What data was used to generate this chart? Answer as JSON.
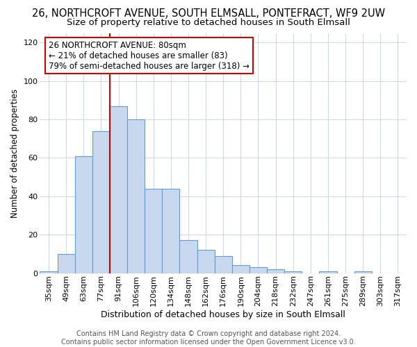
{
  "title": "26, NORTHCROFT AVENUE, SOUTH ELMSALL, PONTEFRACT, WF9 2UW",
  "subtitle": "Size of property relative to detached houses in South Elmsall",
  "xlabel": "Distribution of detached houses by size in South Elmsall",
  "ylabel": "Number of detached properties",
  "bar_color": "#c8d8ee",
  "bar_edge_color": "#6699cc",
  "background_color": "#ffffff",
  "grid_color": "#d0d8e8",
  "categories": [
    "35sqm",
    "49sqm",
    "63sqm",
    "77sqm",
    "91sqm",
    "106sqm",
    "120sqm",
    "134sqm",
    "148sqm",
    "162sqm",
    "176sqm",
    "190sqm",
    "204sqm",
    "218sqm",
    "232sqm",
    "247sqm",
    "261sqm",
    "275sqm",
    "289sqm",
    "303sqm",
    "317sqm"
  ],
  "values": [
    1,
    10,
    61,
    74,
    87,
    80,
    44,
    44,
    17,
    12,
    9,
    4,
    3,
    2,
    1,
    0,
    1,
    0,
    1,
    0,
    0
  ],
  "ylim": [
    0,
    125
  ],
  "yticks": [
    0,
    20,
    40,
    60,
    80,
    100,
    120
  ],
  "prop_line_index": 3,
  "annotation_text": "26 NORTHCROFT AVENUE: 80sqm\n← 21% of detached houses are smaller (83)\n79% of semi-detached houses are larger (318) →",
  "red_line_color": "#cc0000",
  "annotation_box_color": "#ffffff",
  "annotation_box_edge": "#cc0000",
  "footer_text": "Contains HM Land Registry data © Crown copyright and database right 2024.\nContains public sector information licensed under the Open Government Licence v3.0.",
  "title_fontsize": 10.5,
  "subtitle_fontsize": 9.5,
  "xlabel_fontsize": 9,
  "ylabel_fontsize": 8.5,
  "tick_fontsize": 8,
  "annotation_fontsize": 8.5,
  "footer_fontsize": 7
}
